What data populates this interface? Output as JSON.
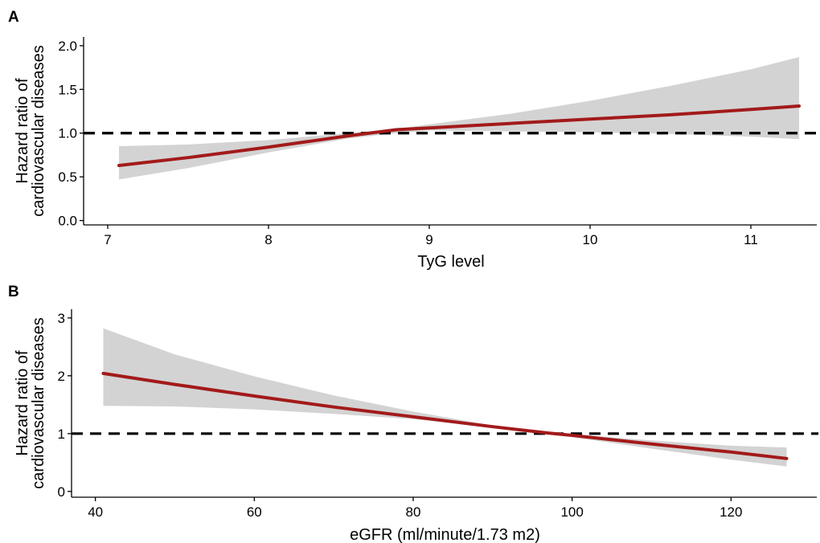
{
  "chart_data": [
    {
      "panel": "A",
      "type": "line",
      "title": "",
      "xlabel": "TyG level",
      "ylabel": [
        "Hazard ratio of",
        "cardiovascular diseases"
      ],
      "xlim": [
        6.85,
        11.42
      ],
      "ylim": [
        -0.05,
        2.1
      ],
      "xticks": [
        7,
        8,
        9,
        10,
        11
      ],
      "yticks": [
        0.0,
        0.5,
        1.0,
        1.5,
        2.0
      ],
      "ytick_labels": [
        "0.0",
        "0.5",
        "1.0",
        "1.5",
        "2.0"
      ],
      "reference_line": 1.0,
      "grid": false,
      "series": [
        {
          "x": [
            7.07,
            7.5,
            8.0,
            8.5,
            8.8,
            9.0,
            9.5,
            10.0,
            10.5,
            11.0,
            11.3
          ],
          "values": [
            0.63,
            0.72,
            0.84,
            0.97,
            1.04,
            1.06,
            1.11,
            1.16,
            1.21,
            1.27,
            1.31
          ],
          "lower": [
            0.47,
            0.6,
            0.78,
            0.94,
            1.0,
            1.03,
            1.02,
            1.01,
            0.99,
            0.96,
            0.93
          ],
          "upper": [
            0.85,
            0.87,
            0.92,
            1.0,
            1.05,
            1.1,
            1.22,
            1.37,
            1.54,
            1.73,
            1.87
          ]
        }
      ],
      "colors": {
        "line": "#a31a1a",
        "band": "#d3d3d3",
        "reference": "#000000"
      }
    },
    {
      "panel": "B",
      "type": "line",
      "title": "",
      "xlabel": "eGFR (ml/minute/1.73 m2)",
      "ylabel": [
        "Hazard ratio of",
        "cardiovascular diseases"
      ],
      "xlim": [
        37,
        131
      ],
      "ylim": [
        -0.1,
        3.15
      ],
      "xticks": [
        40,
        60,
        80,
        100,
        120
      ],
      "yticks": [
        0,
        1,
        2,
        3
      ],
      "ytick_labels": [
        "0",
        "1",
        "2",
        "3"
      ],
      "reference_line": 1.0,
      "grid": false,
      "series": [
        {
          "x": [
            41,
            50,
            60,
            70,
            80,
            90,
            97,
            100,
            110,
            120,
            127
          ],
          "values": [
            2.04,
            1.85,
            1.65,
            1.46,
            1.29,
            1.12,
            1.01,
            0.97,
            0.82,
            0.68,
            0.57
          ],
          "lower": [
            1.48,
            1.47,
            1.42,
            1.34,
            1.25,
            1.11,
            1.0,
            0.94,
            0.74,
            0.55,
            0.43
          ],
          "upper": [
            2.82,
            2.37,
            1.99,
            1.66,
            1.38,
            1.14,
            1.02,
            0.99,
            0.88,
            0.79,
            0.76
          ]
        }
      ],
      "colors": {
        "line": "#a31a1a",
        "band": "#d3d3d3",
        "reference": "#000000"
      }
    }
  ]
}
